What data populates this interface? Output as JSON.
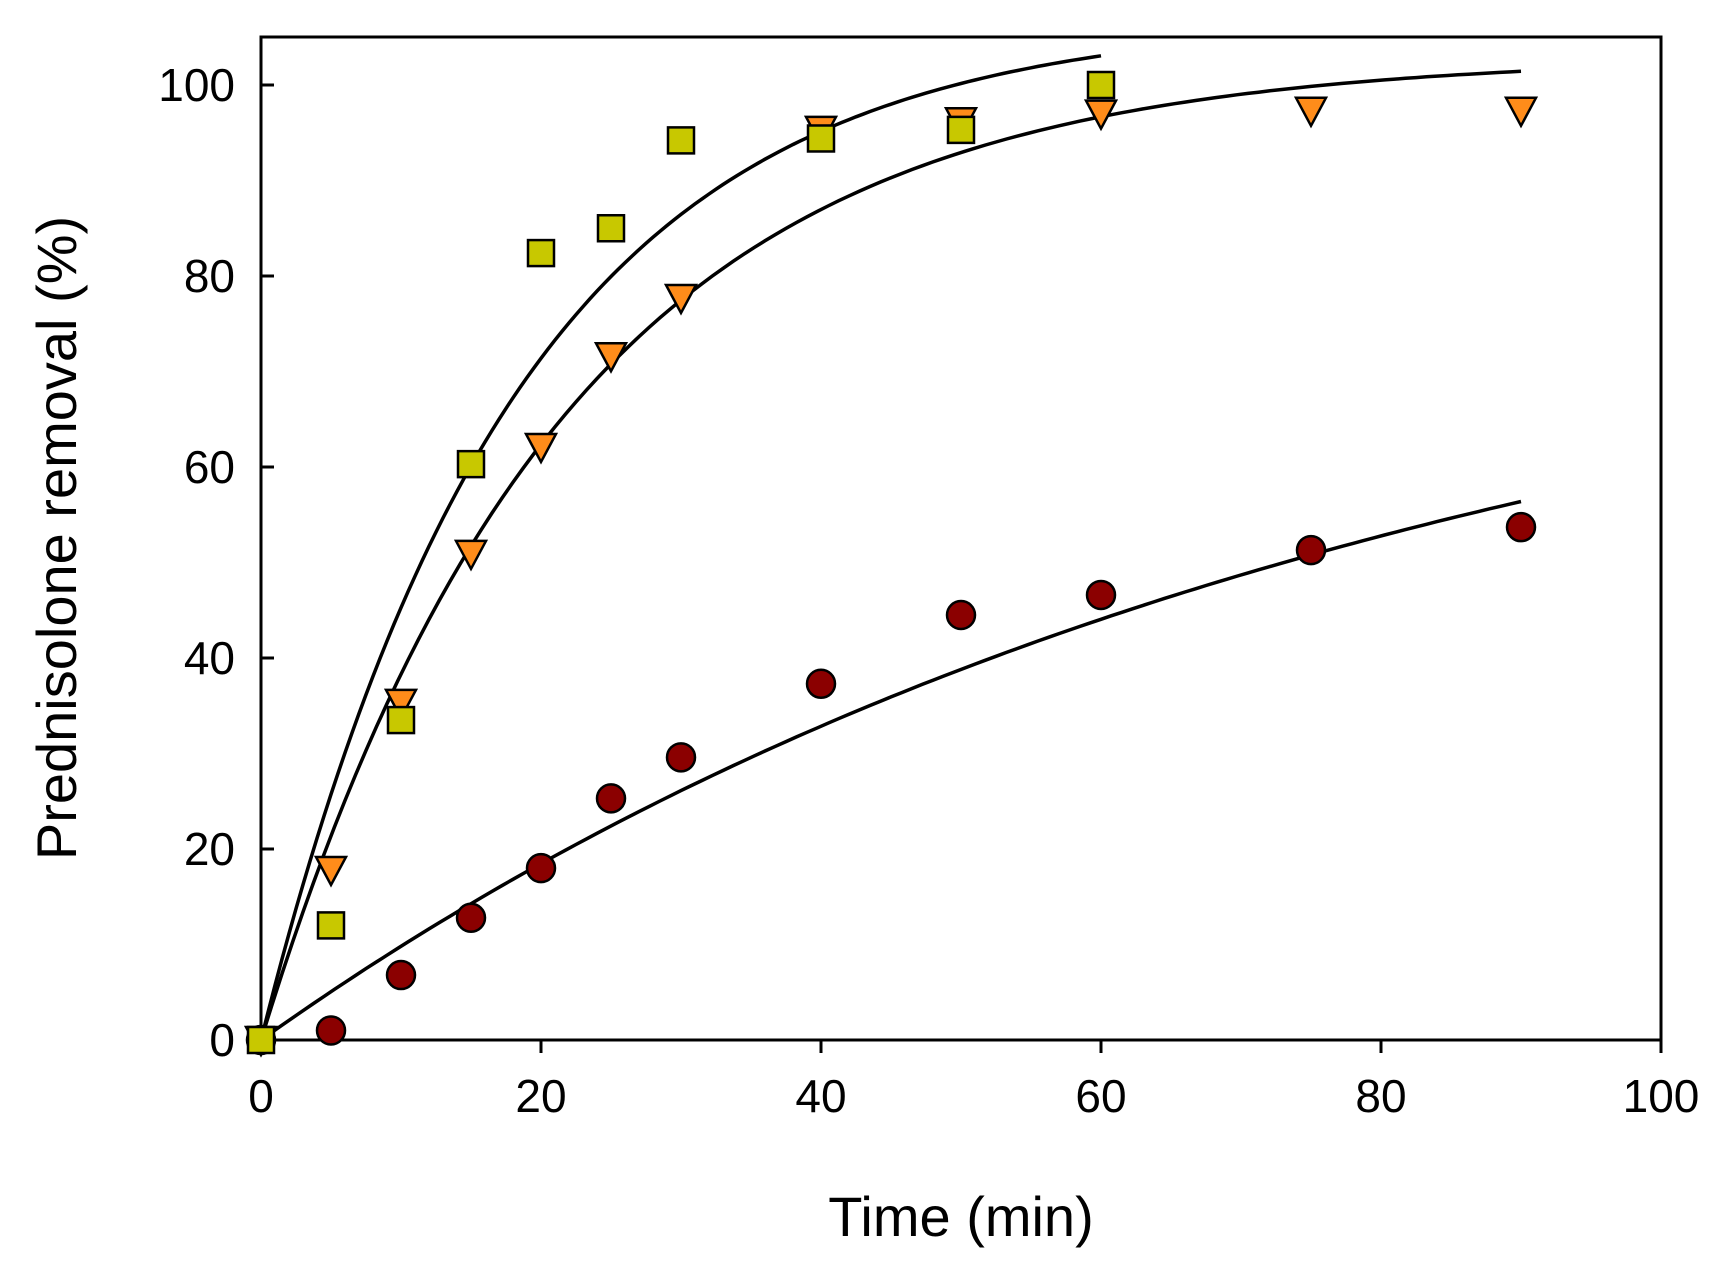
{
  "chart_data": {
    "type": "scatter",
    "title": "",
    "xlabel": "Time (min)",
    "ylabel": "Prednisolone removal (%)",
    "xlim": [
      0,
      100
    ],
    "ylim": [
      0,
      100
    ],
    "xticks": [
      0,
      20,
      40,
      60,
      80,
      100
    ],
    "yticks": [
      0,
      20,
      40,
      60,
      80,
      100
    ],
    "grid": false,
    "legend": "none",
    "series": [
      {
        "name": "circles",
        "marker": "circle",
        "color": "#8b0000",
        "x": [
          0,
          5,
          10,
          15,
          20,
          25,
          30,
          40,
          50,
          60,
          75,
          90
        ],
        "y": [
          0,
          1,
          6.8,
          12.8,
          18,
          25.3,
          29.6,
          37.3,
          44.5,
          46.6,
          51.3,
          53.7
        ],
        "fit": {
          "x_end": 90,
          "k": 0.0125,
          "a": 83.5
        }
      },
      {
        "name": "triangles",
        "marker": "triangle-down",
        "color": "#ff8c1a",
        "x": [
          0,
          5,
          10,
          15,
          20,
          25,
          30,
          40,
          50,
          60,
          75,
          90
        ],
        "y": [
          0,
          17.8,
          35.3,
          50.9,
          62.1,
          71.6,
          77.7,
          95.3,
          96.2,
          97,
          97.3,
          97.3
        ],
        "fit": {
          "x_end": 90,
          "k": 0.0465,
          "a": 103
        }
      },
      {
        "name": "squares",
        "marker": "square",
        "color": "#c8c800",
        "x": [
          0,
          5,
          10,
          15,
          20,
          25,
          30,
          40,
          50,
          60
        ],
        "y": [
          0,
          12,
          33.5,
          60.3,
          82.4,
          85,
          94.2,
          94.4,
          95.3,
          100
        ],
        "fit": {
          "x_end": 60,
          "k": 0.055,
          "a": 107
        }
      }
    ]
  }
}
